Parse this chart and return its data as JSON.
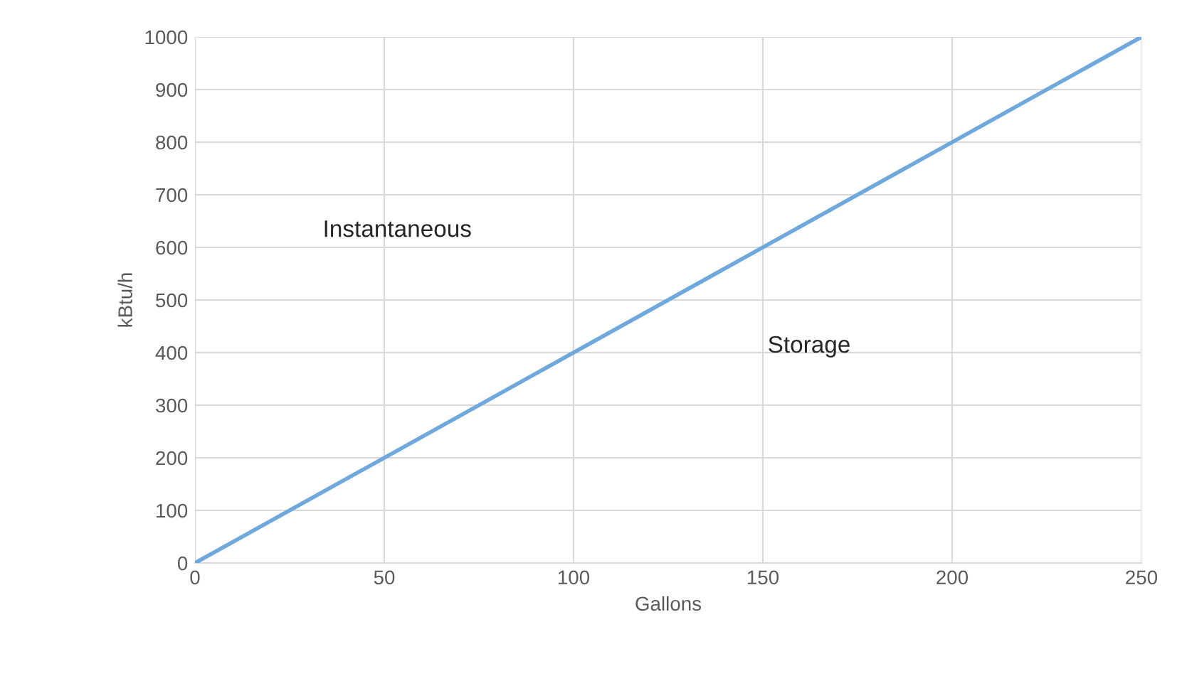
{
  "chart_data": {
    "type": "line",
    "xlabel": "Gallons",
    "ylabel": "kBtu/h",
    "x": [
      0,
      250
    ],
    "series": [
      {
        "color": "#6fa8dc",
        "values": [
          0,
          1000
        ]
      }
    ],
    "xlim": [
      0,
      250
    ],
    "xticks": [
      0,
      50,
      100,
      150,
      200,
      250
    ],
    "ylim": [
      0,
      1000
    ],
    "yticks": [
      0,
      100,
      200,
      300,
      400,
      500,
      600,
      700,
      800,
      900,
      1000
    ],
    "grid": true,
    "marker": "none",
    "line_style": "solid",
    "annotations": [
      "Instantaneous",
      "Storage"
    ]
  }
}
